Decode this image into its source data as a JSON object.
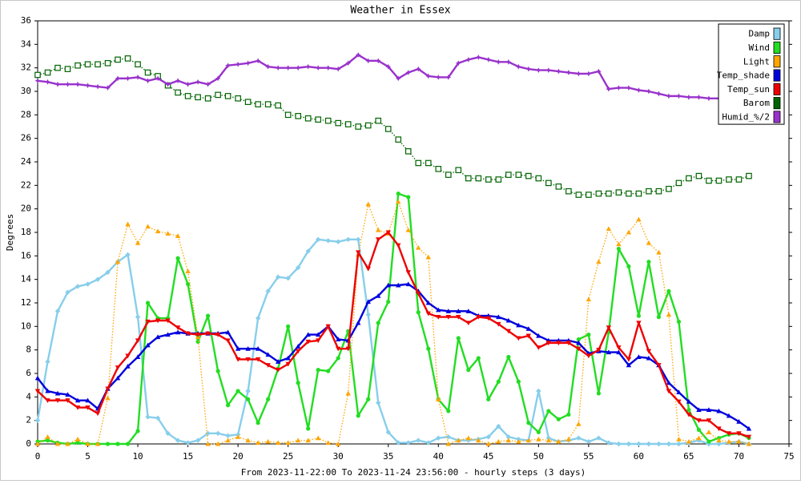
{
  "chart_data": {
    "type": "line",
    "title": "Weather in Essex",
    "x_label": "From 2023-11-22:00 To 2023-11-24 23:56:00 - hourly steps (3 days)",
    "y_label": "Degrees",
    "xlim": [
      0,
      75
    ],
    "xticks": [
      0,
      5,
      10,
      15,
      20,
      25,
      30,
      35,
      40,
      45,
      50,
      55,
      60,
      65,
      70,
      75
    ],
    "ylim": [
      0,
      36
    ],
    "yticks": [
      0,
      2,
      4,
      6,
      8,
      10,
      12,
      14,
      16,
      18,
      20,
      22,
      24,
      26,
      28,
      30,
      32,
      34,
      36
    ],
    "grid": false,
    "legend": "top-right",
    "x": [
      0,
      1,
      2,
      3,
      4,
      5,
      6,
      7,
      8,
      9,
      10,
      11,
      12,
      13,
      14,
      15,
      16,
      17,
      18,
      19,
      20,
      21,
      22,
      23,
      24,
      25,
      26,
      27,
      28,
      29,
      30,
      31,
      32,
      33,
      34,
      35,
      36,
      37,
      38,
      39,
      40,
      41,
      42,
      43,
      44,
      45,
      46,
      47,
      48,
      49,
      50,
      51,
      52,
      53,
      54,
      55,
      56,
      57,
      58,
      59,
      60,
      61,
      62,
      63,
      64,
      65,
      66,
      67,
      68,
      69,
      70,
      71
    ],
    "series": [
      {
        "name": "Damp",
        "color": "#87ceeb",
        "marker": "diamond",
        "line_style": "solid",
        "values": [
          2,
          7,
          11.3,
          12.9,
          13.4,
          13.6,
          14,
          14.6,
          15.5,
          16.1,
          10.8,
          2.3,
          2.2,
          0.9,
          0.3,
          0.1,
          0.3,
          0.9,
          0.9,
          0.7,
          0.8,
          4.5,
          10.7,
          13,
          14.2,
          14.1,
          15,
          16.4,
          17.4,
          17.3,
          17.2,
          17.4,
          17.4,
          11,
          3.5,
          1,
          0.1,
          0.1,
          0.3,
          0.1,
          0.5,
          0.6,
          0.3,
          0.3,
          0.4,
          0.6,
          1.5,
          0.6,
          0.4,
          0.3,
          4.5,
          0.5,
          0.2,
          0.3,
          0.5,
          0.2,
          0.5,
          0.1,
          0,
          0,
          0,
          0,
          0,
          0,
          0,
          0.1,
          0.3,
          0,
          0,
          0.1,
          0.2,
          0
        ]
      },
      {
        "name": "Wind",
        "color": "#22dd22",
        "marker": "circle",
        "line_style": "solid",
        "values": [
          0.2,
          0.3,
          0.1,
          0,
          0.1,
          0,
          0,
          0,
          0,
          0,
          1.1,
          12,
          10.7,
          10.7,
          15.8,
          13.6,
          8.7,
          10.9,
          6.2,
          3.3,
          4.5,
          3.8,
          1.8,
          3.8,
          6.4,
          10,
          5.2,
          1.3,
          6.3,
          6.2,
          7.3,
          9.6,
          2.4,
          3.8,
          10.3,
          12.1,
          21.3,
          21,
          11.2,
          8.1,
          3.8,
          2.8,
          9,
          6.3,
          7.3,
          3.8,
          5.3,
          7.4,
          5.3,
          1.8,
          1,
          2.8,
          2.1,
          2.5,
          8.9,
          9.3,
          4.3,
          9.5,
          16.6,
          15.1,
          10.9,
          15.5,
          10.8,
          13,
          10.4,
          2.9,
          1.2,
          0.2,
          0.5,
          0.8,
          0.9,
          0.5
        ]
      },
      {
        "name": "Light",
        "color": "#ffa500",
        "marker": "triangle-up",
        "line_style": "dotted",
        "values": [
          0,
          0.6,
          0,
          0,
          0.4,
          0,
          0,
          3.9,
          15.5,
          18.7,
          17.1,
          18.5,
          18.1,
          17.9,
          17.7,
          14.7,
          9.1,
          0,
          0,
          0.3,
          0.6,
          0.3,
          0.1,
          0.2,
          0.1,
          0.1,
          0.3,
          0.3,
          0.5,
          0.1,
          0,
          4.3,
          16.1,
          20.4,
          18.2,
          17.9,
          20.6,
          18.2,
          16.7,
          15.9,
          3.8,
          0,
          0.3,
          0.5,
          0.3,
          0,
          0.2,
          0.3,
          0.2,
          0.3,
          0.4,
          0.3,
          0.2,
          0.4,
          1.7,
          12.3,
          15.5,
          18.3,
          17,
          18,
          19.1,
          17.1,
          16.3,
          11,
          0.4,
          0.2,
          0.5,
          1,
          0.3,
          0.2,
          0.2,
          0
        ]
      },
      {
        "name": "Temp_shade",
        "color": "#0000dd",
        "marker": "triangle-up",
        "line_style": "solid",
        "values": [
          5.6,
          4.5,
          4.3,
          4.2,
          3.7,
          3.7,
          3,
          4.7,
          5.6,
          6.6,
          7.4,
          8.4,
          9.1,
          9.3,
          9.5,
          9.4,
          9.4,
          9.4,
          9.4,
          9.5,
          8.1,
          8.1,
          8.1,
          7.6,
          7,
          7.3,
          8.3,
          9.3,
          9.3,
          10,
          8.9,
          8.8,
          10.3,
          12.1,
          12.6,
          13.5,
          13.5,
          13.6,
          13,
          12,
          11.4,
          11.3,
          11.3,
          11.3,
          10.9,
          10.9,
          10.8,
          10.5,
          10.1,
          9.8,
          9.2,
          8.8,
          8.8,
          8.8,
          8.6,
          7.7,
          7.9,
          7.8,
          7.8,
          6.7,
          7.4,
          7.3,
          6.7,
          5.2,
          4.4,
          3.6,
          2.9,
          2.9,
          2.8,
          2.4,
          1.9,
          1.3
        ]
      },
      {
        "name": "Temp_sun",
        "color": "#ee0000",
        "marker": "triangle-down",
        "line_style": "solid",
        "values": [
          4.5,
          3.7,
          3.7,
          3.7,
          3.1,
          3.1,
          2.6,
          4.7,
          6.5,
          7.5,
          8.8,
          10.4,
          10.5,
          10.5,
          9.9,
          9.4,
          9.3,
          9.4,
          9.3,
          8.8,
          7.2,
          7.2,
          7.2,
          6.7,
          6.3,
          6.8,
          7.9,
          8.7,
          8.8,
          10,
          8.1,
          8.1,
          16.3,
          14.9,
          17.4,
          18,
          16.9,
          14.6,
          12.8,
          11.1,
          10.8,
          10.8,
          10.8,
          10.3,
          10.8,
          10.7,
          10.2,
          9.6,
          9,
          9.2,
          8.2,
          8.6,
          8.6,
          8.6,
          8.1,
          7.5,
          8,
          9.9,
          8.2,
          7.2,
          10.3,
          7.9,
          6.7,
          4.5,
          3.6,
          2.5,
          2,
          2,
          1.3,
          0.9,
          0.9,
          0.6
        ]
      },
      {
        "name": "Barom",
        "color": "#006400",
        "marker": "square-open",
        "line_style": "dotted",
        "values": [
          31.4,
          31.6,
          32,
          31.9,
          32.2,
          32.3,
          32.3,
          32.4,
          32.7,
          32.8,
          32.3,
          31.6,
          31.3,
          30.5,
          29.9,
          29.6,
          29.5,
          29.4,
          29.7,
          29.6,
          29.4,
          29.1,
          28.9,
          28.9,
          28.8,
          28,
          27.9,
          27.7,
          27.6,
          27.5,
          27.3,
          27.2,
          27,
          27.1,
          27.5,
          26.8,
          25.9,
          24.9,
          23.9,
          23.9,
          23.4,
          22.9,
          23.3,
          22.6,
          22.6,
          22.5,
          22.5,
          22.9,
          22.9,
          22.8,
          22.6,
          22.2,
          21.9,
          21.5,
          21.2,
          21.2,
          21.3,
          21.3,
          21.4,
          21.3,
          21.3,
          21.5,
          21.5,
          21.7,
          22.2,
          22.6,
          22.8,
          22.4,
          22.4,
          22.5,
          22.5,
          22.8
        ]
      },
      {
        "name": "Humid_%/2",
        "color": "#9932cc",
        "marker": "star",
        "line_style": "solid",
        "values": [
          30.9,
          30.8,
          30.6,
          30.6,
          30.6,
          30.5,
          30.4,
          30.3,
          31.1,
          31.1,
          31.2,
          30.9,
          31.1,
          30.6,
          30.9,
          30.6,
          30.8,
          30.6,
          31.1,
          32.2,
          32.3,
          32.4,
          32.6,
          32.1,
          32,
          32,
          32,
          32.1,
          32,
          32,
          31.9,
          32.4,
          33.1,
          32.6,
          32.6,
          32.1,
          31.1,
          31.6,
          31.9,
          31.3,
          31.2,
          31.2,
          32.4,
          32.7,
          32.9,
          32.7,
          32.5,
          32.5,
          32.1,
          31.9,
          31.8,
          31.8,
          31.7,
          31.6,
          31.5,
          31.5,
          31.7,
          30.2,
          30.3,
          30.3,
          30.1,
          30,
          29.8,
          29.6,
          29.6,
          29.5,
          29.5,
          29.4,
          29.4,
          29.5,
          29.4,
          null
        ]
      }
    ]
  }
}
